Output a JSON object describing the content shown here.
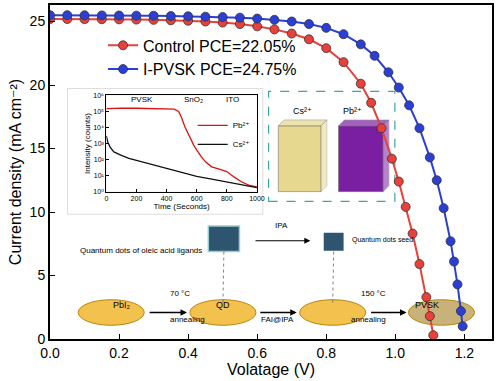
{
  "chart_data": [
    {
      "type": "line",
      "x_label": "Volatage (V)",
      "y_label": "Current density (mA cm⁻²)",
      "xlim": [
        0,
        1.28
      ],
      "xticks": [
        {
          "value": 0,
          "label": "0.0"
        },
        0.2,
        0.4,
        0.6,
        0.8,
        {
          "value": 1,
          "label": "1.0"
        },
        1.2
      ],
      "ylim": [
        0,
        26.3
      ],
      "yticks": [
        0,
        5,
        10,
        15,
        20,
        25
      ],
      "grid": false,
      "legend": "upper left",
      "series": [
        {
          "name": "Control PCE=22.05%",
          "color": "#e8403a",
          "marker": "circle",
          "x": [
            0,
            0.05,
            0.1,
            0.15,
            0.2,
            0.25,
            0.3,
            0.35,
            0.4,
            0.45,
            0.5,
            0.55,
            0.6,
            0.65,
            0.7,
            0.75,
            0.8,
            0.85,
            0.9,
            0.93,
            0.96,
            0.99,
            1.01,
            1.03,
            1.05,
            1.07,
            1.09,
            1.1,
            1.11
          ],
          "values": [
            25.2,
            25.2,
            25.19,
            25.18,
            25.17,
            25.15,
            25.13,
            25.1,
            25.06,
            25.0,
            24.92,
            24.8,
            24.62,
            24.38,
            24.05,
            23.6,
            22.9,
            21.8,
            20.1,
            18.6,
            16.6,
            14.2,
            12.4,
            10.4,
            8.3,
            5.9,
            3.3,
            1.8,
            0.3
          ]
        },
        {
          "name": "I-PVSK PCE=24.75%",
          "color": "#2b3fd6",
          "marker": "circle",
          "x": [
            0,
            0.05,
            0.1,
            0.15,
            0.2,
            0.25,
            0.3,
            0.35,
            0.4,
            0.45,
            0.5,
            0.55,
            0.6,
            0.65,
            0.7,
            0.75,
            0.8,
            0.85,
            0.9,
            0.94,
            0.98,
            1.01,
            1.04,
            1.07,
            1.1,
            1.12,
            1.14,
            1.16,
            1.17,
            1.18,
            1.19,
            1.195
          ],
          "values": [
            25.5,
            25.5,
            25.49,
            25.48,
            25.47,
            25.46,
            25.45,
            25.43,
            25.41,
            25.38,
            25.35,
            25.3,
            25.23,
            25.13,
            25.0,
            24.8,
            24.5,
            24.0,
            23.2,
            22.3,
            21.0,
            19.8,
            18.4,
            16.6,
            14.3,
            12.5,
            10.3,
            7.7,
            6.1,
            4.3,
            2.2,
            1.0
          ]
        }
      ]
    },
    {
      "type": "line",
      "x_label": "Time (Seconds)",
      "y_label": "Intensity (counts)",
      "log": "y",
      "xlim": [
        0,
        1000
      ],
      "xticks": [
        0,
        200,
        400,
        600,
        800,
        1000
      ],
      "ylim": [
        1,
        1000000
      ],
      "yticks": [
        {
          "value": 1,
          "label": "10⁰"
        },
        {
          "value": 10,
          "label": "10¹"
        },
        {
          "value": 100,
          "label": "10²"
        },
        {
          "value": 1000,
          "label": "10³"
        },
        {
          "value": 10000,
          "label": "10⁴"
        },
        {
          "value": 100000,
          "label": "10⁵"
        },
        {
          "value": 1000000,
          "label": "10⁶"
        }
      ],
      "grid": false,
      "legend": "upper right",
      "regions": [
        {
          "label": "PVSK",
          "x": [
            0,
            480
          ],
          "color": "#f5b0b0"
        },
        {
          "label": "SnO₂",
          "x": [
            480,
            680
          ],
          "color": "#b8c4ee"
        },
        {
          "label": "ITO",
          "x": [
            680,
            1000
          ],
          "color": "#c6c6d0"
        }
      ],
      "series": [
        {
          "name": "Pb²⁺",
          "color": "#e01010",
          "x": [
            0,
            50,
            100,
            200,
            300,
            400,
            450,
            480,
            500,
            520,
            550,
            580,
            600,
            630,
            660,
            700,
            750,
            800,
            850,
            900,
            950,
            1000
          ],
          "values": [
            150000,
            160000,
            160000,
            158000,
            155000,
            150000,
            140000,
            100000,
            40000,
            12000,
            3000,
            800,
            400,
            150,
            70,
            35,
            25,
            18,
            8,
            4,
            2.5,
            2
          ]
        },
        {
          "name": "Cs²⁺",
          "color": "#111111",
          "x": [
            0,
            10,
            25,
            50,
            100,
            150,
            200,
            300,
            400,
            500,
            600,
            700,
            800,
            900,
            1000
          ],
          "values": [
            3000,
            1200,
            600,
            300,
            180,
            120,
            90,
            50,
            30,
            15,
            9,
            6,
            4,
            2.5,
            1.8
          ]
        }
      ]
    }
  ],
  "ion_map": {
    "labels": [
      {
        "text": "Cs²⁺",
        "color": "#e6d88e"
      },
      {
        "text": "Pb²⁺",
        "color": "#7a1fa2"
      }
    ]
  },
  "schematic": {
    "steps": [
      "PbI₂",
      "QD",
      "PVSK"
    ],
    "arrows": [
      {
        "top": "70 °C",
        "bottom": "annealing"
      },
      {
        "bottom": "FAI@IPA"
      },
      {
        "top": "150 °C",
        "bottom": "annealing"
      }
    ],
    "ligand_note": "Quantum dots of oleic acid ligands",
    "wash": "IPA",
    "seed_note": "Quantum dots seed"
  }
}
